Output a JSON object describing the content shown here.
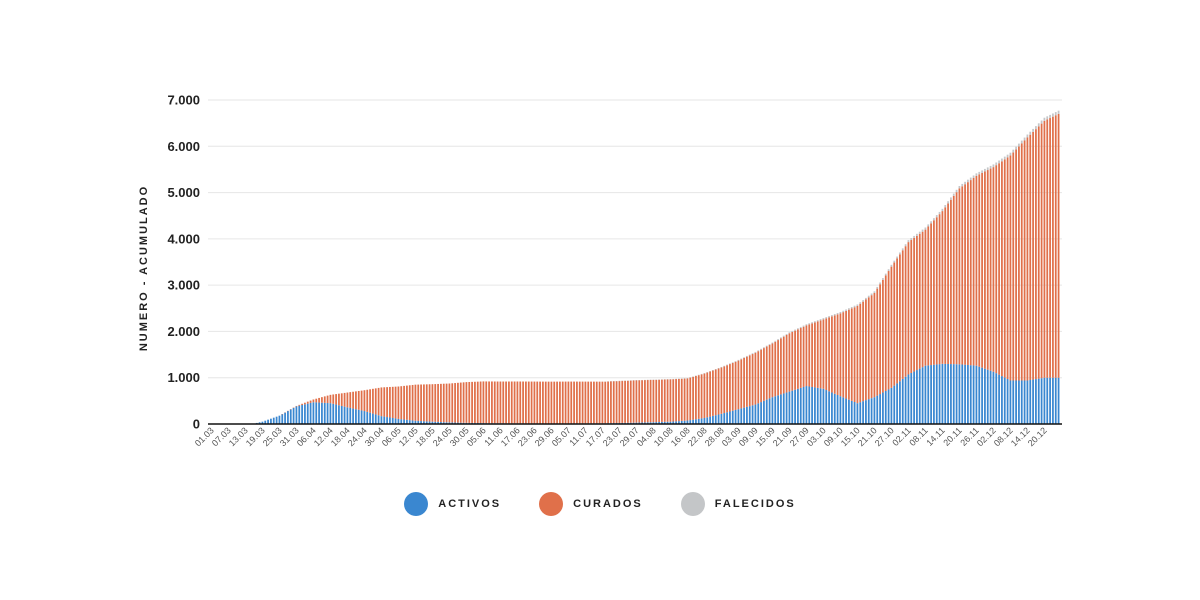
{
  "chart_data": {
    "type": "bar",
    "stacked": true,
    "ylabel": "NUMERO - ACUMULADO",
    "ylim": [
      0,
      7000
    ],
    "yticks": [
      "0",
      "1.000",
      "2.000",
      "3.000",
      "4.000",
      "5.000",
      "6.000",
      "7.000"
    ],
    "ytick_values": [
      0,
      1000,
      2000,
      3000,
      4000,
      5000,
      6000,
      7000
    ],
    "grid": true,
    "legend_position": "bottom",
    "x_tick_labels": [
      "01.03",
      "07.03",
      "13.03",
      "19.03",
      "25.03",
      "31.03",
      "06.04",
      "12.04",
      "18.04",
      "24.04",
      "30.04",
      "06.05",
      "12.05",
      "18.05",
      "24.05",
      "30.05",
      "05.06",
      "11.06",
      "17.06",
      "23.06",
      "29.06",
      "05.07",
      "11.07",
      "17.07",
      "23.07",
      "29.07",
      "04.08",
      "10.08",
      "16.08",
      "22.08",
      "28.08",
      "03.09",
      "09.09",
      "15.09",
      "21.09",
      "27.09",
      "03.10",
      "09.10",
      "15.10",
      "21.10",
      "27.10",
      "02.11",
      "08.11",
      "14.11",
      "20.11",
      "26.11",
      "02.12",
      "08.12",
      "14.12",
      "20.12"
    ],
    "x_tick_every_days": 6,
    "x_range": [
      "01.03",
      "25.12"
    ],
    "series": [
      {
        "name": "ACTIVOS",
        "color": "#3a87d0",
        "points": [
          [
            "01.03",
            0
          ],
          [
            "13.03",
            0
          ],
          [
            "16.03",
            10
          ],
          [
            "19.03",
            50
          ],
          [
            "25.03",
            180
          ],
          [
            "31.03",
            380
          ],
          [
            "06.04",
            470
          ],
          [
            "12.04",
            450
          ],
          [
            "18.04",
            360
          ],
          [
            "24.04",
            280
          ],
          [
            "30.04",
            170
          ],
          [
            "06.05",
            110
          ],
          [
            "12.05",
            70
          ],
          [
            "18.05",
            50
          ],
          [
            "24.05",
            35
          ],
          [
            "30.05",
            25
          ],
          [
            "11.06",
            15
          ],
          [
            "29.06",
            10
          ],
          [
            "17.07",
            15
          ],
          [
            "29.07",
            30
          ],
          [
            "10.08",
            50
          ],
          [
            "16.08",
            75
          ],
          [
            "22.08",
            130
          ],
          [
            "28.08",
            220
          ],
          [
            "03.09",
            320
          ],
          [
            "09.09",
            420
          ],
          [
            "15.09",
            580
          ],
          [
            "21.09",
            700
          ],
          [
            "27.09",
            820
          ],
          [
            "03.10",
            760
          ],
          [
            "09.10",
            600
          ],
          [
            "15.10",
            450
          ],
          [
            "21.10",
            580
          ],
          [
            "27.10",
            780
          ],
          [
            "02.11",
            1070
          ],
          [
            "08.11",
            1260
          ],
          [
            "14.11",
            1300
          ],
          [
            "20.11",
            1290
          ],
          [
            "26.11",
            1260
          ],
          [
            "02.12",
            1130
          ],
          [
            "08.12",
            940
          ],
          [
            "14.12",
            940
          ],
          [
            "20.12",
            1000
          ],
          [
            "25.12",
            1000
          ]
        ]
      },
      {
        "name": "CURADOS",
        "color": "#e0704a",
        "points": [
          [
            "01.03",
            0
          ],
          [
            "25.03",
            0
          ],
          [
            "31.03",
            10
          ],
          [
            "06.04",
            60
          ],
          [
            "12.04",
            180
          ],
          [
            "18.04",
            320
          ],
          [
            "24.04",
            450
          ],
          [
            "30.04",
            620
          ],
          [
            "06.05",
            700
          ],
          [
            "12.05",
            780
          ],
          [
            "18.05",
            810
          ],
          [
            "24.05",
            840
          ],
          [
            "30.05",
            880
          ],
          [
            "05.06",
            900
          ],
          [
            "17.06",
            905
          ],
          [
            "05.07",
            905
          ],
          [
            "17.07",
            900
          ],
          [
            "29.07",
            915
          ],
          [
            "10.08",
            915
          ],
          [
            "16.08",
            910
          ],
          [
            "22.08",
            960
          ],
          [
            "28.08",
            1000
          ],
          [
            "03.09",
            1050
          ],
          [
            "09.09",
            1120
          ],
          [
            "15.09",
            1160
          ],
          [
            "21.09",
            1260
          ],
          [
            "27.09",
            1310
          ],
          [
            "03.10",
            1500
          ],
          [
            "09.10",
            1790
          ],
          [
            "15.10",
            2100
          ],
          [
            "21.10",
            2250
          ],
          [
            "27.10",
            2620
          ],
          [
            "02.11",
            2860
          ],
          [
            "08.11",
            2940
          ],
          [
            "14.11",
            3300
          ],
          [
            "20.11",
            3800
          ],
          [
            "26.11",
            4100
          ],
          [
            "02.12",
            4420
          ],
          [
            "08.12",
            4860
          ],
          [
            "14.12",
            5250
          ],
          [
            "20.12",
            5550
          ],
          [
            "25.12",
            5700
          ]
        ]
      },
      {
        "name": "FALECIDOS",
        "color": "#c4c6c8",
        "points": [
          [
            "01.03",
            0
          ],
          [
            "15.07",
            0
          ],
          [
            "10.08",
            5
          ],
          [
            "09.10",
            30
          ],
          [
            "25.12",
            70
          ]
        ]
      }
    ]
  },
  "legend": [
    {
      "label": "ACTIVOS",
      "color": "#3a87d0"
    },
    {
      "label": "CURADOS",
      "color": "#e0704a"
    },
    {
      "label": "FALECIDOS",
      "color": "#c4c6c8"
    }
  ]
}
